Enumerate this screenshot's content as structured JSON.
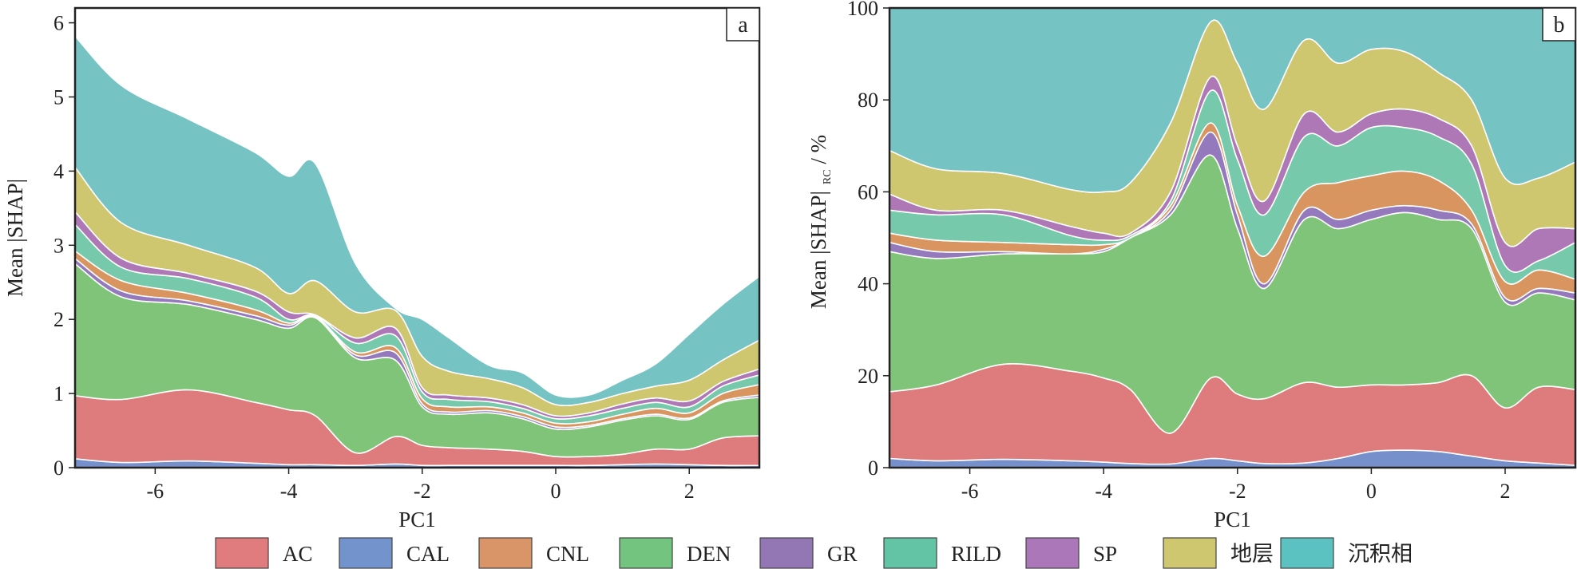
{
  "legend": [
    {
      "name": "AC",
      "color": "#e07b7e"
    },
    {
      "name": "CAL",
      "color": "#7393cc"
    },
    {
      "name": "CNL",
      "color": "#d99567"
    },
    {
      "name": "DEN",
      "color": "#73c47e"
    },
    {
      "name": "GR",
      "color": "#9376b4"
    },
    {
      "name": "RILD",
      "color": "#62c3a5"
    },
    {
      "name": "SP",
      "color": "#ab77b8"
    },
    {
      "name": "地层",
      "color": "#cfc670"
    },
    {
      "name": "沉积相",
      "color": "#5cc1c1"
    }
  ],
  "chart_data": [
    {
      "type": "area",
      "stacked": true,
      "panel_label": "a",
      "title": "",
      "xlabel": "PC1",
      "ylabel": "Mean |SHAP|",
      "xlim": [
        -7.2,
        3.05
      ],
      "ylim": [
        0,
        6.2
      ],
      "xticks": [
        -6,
        -4,
        -2,
        0,
        2
      ],
      "yticks": [
        0,
        1,
        2,
        3,
        4,
        5,
        6
      ],
      "stack_order": [
        "CAL",
        "AC",
        "DEN",
        "GR",
        "CNL",
        "RILD",
        "SP",
        "地层",
        "沉积相"
      ],
      "x": [
        -7.2,
        -6.5,
        -5.5,
        -4.5,
        -4.0,
        -3.6,
        -3.0,
        -2.4,
        -2.0,
        -1.6,
        -1.0,
        -0.5,
        0.0,
        0.5,
        1.0,
        1.5,
        2.0,
        2.5,
        3.05
      ],
      "series": [
        {
          "name": "CAL",
          "values": [
            0.12,
            0.07,
            0.09,
            0.06,
            0.04,
            0.04,
            0.03,
            0.05,
            0.03,
            0.03,
            0.03,
            0.03,
            0.03,
            0.03,
            0.04,
            0.05,
            0.04,
            0.03,
            0.03
          ]
        },
        {
          "name": "AC",
          "values": [
            0.85,
            0.85,
            0.96,
            0.82,
            0.74,
            0.66,
            0.17,
            0.37,
            0.27,
            0.24,
            0.22,
            0.19,
            0.12,
            0.12,
            0.14,
            0.2,
            0.21,
            0.37,
            0.4
          ]
        },
        {
          "name": "DEN",
          "values": [
            1.78,
            1.38,
            1.15,
            1.12,
            1.1,
            1.32,
            1.28,
            1.03,
            0.52,
            0.45,
            0.49,
            0.44,
            0.37,
            0.4,
            0.46,
            0.45,
            0.4,
            0.48,
            0.52
          ]
        },
        {
          "name": "GR",
          "values": [
            0.07,
            0.08,
            0.05,
            0.05,
            0.04,
            0.01,
            0.04,
            0.1,
            0.04,
            0.03,
            0.03,
            0.03,
            0.03,
            0.02,
            0.02,
            0.02,
            0.02,
            0.02,
            0.03
          ]
        },
        {
          "name": "CNL",
          "values": [
            0.1,
            0.14,
            0.1,
            0.08,
            0.03,
            0.01,
            0.04,
            0.07,
            0.07,
            0.07,
            0.05,
            0.05,
            0.05,
            0.05,
            0.06,
            0.08,
            0.07,
            0.1,
            0.14
          ]
        },
        {
          "name": "RILD",
          "values": [
            0.36,
            0.18,
            0.2,
            0.17,
            0.05,
            0.01,
            0.12,
            0.16,
            0.09,
            0.1,
            0.07,
            0.06,
            0.06,
            0.08,
            0.08,
            0.08,
            0.08,
            0.1,
            0.13
          ]
        },
        {
          "name": "SP",
          "values": [
            0.17,
            0.12,
            0.07,
            0.08,
            0.1,
            0.01,
            0.07,
            0.1,
            0.06,
            0.06,
            0.05,
            0.05,
            0.04,
            0.04,
            0.06,
            0.06,
            0.08,
            0.06,
            0.08
          ]
        },
        {
          "name": "地层",
          "values": [
            0.6,
            0.48,
            0.38,
            0.32,
            0.25,
            0.46,
            0.35,
            0.24,
            0.42,
            0.32,
            0.26,
            0.23,
            0.15,
            0.14,
            0.14,
            0.16,
            0.28,
            0.29,
            0.39
          ]
        },
        {
          "name": "沉积相",
          "values": [
            1.77,
            1.85,
            1.7,
            1.55,
            1.58,
            1.58,
            0.65,
            0.03,
            0.5,
            0.45,
            0.18,
            0.2,
            0.13,
            0.1,
            0.18,
            0.3,
            0.62,
            0.75,
            0.86
          ]
        }
      ]
    },
    {
      "type": "area",
      "stacked": true,
      "panel_label": "b",
      "title": "",
      "xlabel": "PC1",
      "ylabel": "Mean |SHAP|RC / %",
      "ylabel_main": "Mean |SHAP|",
      "ylabel_sub": "RC",
      "ylabel_tail": " / %",
      "xlim": [
        -7.2,
        3.05
      ],
      "ylim": [
        0,
        100
      ],
      "xticks": [
        -6,
        -4,
        -2,
        0,
        2
      ],
      "yticks": [
        0,
        20,
        40,
        60,
        80,
        100
      ],
      "stack_order": [
        "CAL",
        "AC",
        "DEN",
        "GR",
        "CNL",
        "RILD",
        "SP",
        "地层",
        "沉积相"
      ],
      "x": [
        -7.2,
        -6.5,
        -5.5,
        -4.5,
        -4.0,
        -3.6,
        -3.0,
        -2.4,
        -2.0,
        -1.6,
        -1.0,
        -0.5,
        0.0,
        0.5,
        1.0,
        1.5,
        2.0,
        2.5,
        3.05
      ],
      "series": [
        {
          "name": "CAL",
          "values": [
            2,
            1.5,
            1.8,
            1.5,
            1.2,
            0.9,
            0.8,
            2,
            1.5,
            0.9,
            1,
            2,
            3.5,
            3.8,
            3.5,
            2.5,
            1.5,
            1,
            0.5
          ]
        },
        {
          "name": "AC",
          "values": [
            14.5,
            16.5,
            20.7,
            19.5,
            18.3,
            16.1,
            6.7,
            17.5,
            14.5,
            14.1,
            17.5,
            15.5,
            14.5,
            14.2,
            15,
            17.5,
            11.5,
            16.5,
            16.5
          ]
        },
        {
          "name": "DEN",
          "values": [
            30.5,
            27.5,
            24,
            25.5,
            27.5,
            33,
            47.5,
            48.5,
            36,
            24,
            35.5,
            34.5,
            36,
            37.5,
            35.5,
            32,
            23,
            20.5,
            19.5
          ]
        },
        {
          "name": "GR",
          "values": [
            2,
            1.5,
            0.5,
            0,
            0.5,
            0,
            1,
            5,
            3,
            1,
            2,
            2,
            2,
            1.5,
            2,
            1,
            1,
            1,
            1.5
          ]
        },
        {
          "name": "CNL",
          "values": [
            2,
            2.5,
            2,
            2,
            1,
            0,
            1,
            2,
            2,
            6,
            4,
            8,
            7.5,
            7.5,
            6.5,
            3,
            3.5,
            4,
            3
          ]
        },
        {
          "name": "RILD",
          "values": [
            5,
            5.5,
            6,
            2,
            1,
            0.5,
            1,
            7,
            10,
            9,
            12,
            8,
            10.5,
            9.5,
            9.5,
            10,
            3.5,
            2,
            8
          ]
        },
        {
          "name": "SP",
          "values": [
            3.5,
            1,
            1,
            2,
            1.5,
            0.5,
            2,
            3,
            3,
            3,
            5,
            3,
            3,
            4,
            4,
            4,
            5,
            7,
            3
          ]
        },
        {
          "name": "地层",
          "values": [
            9.5,
            9,
            8,
            8,
            9,
            11,
            15,
            12,
            18,
            20,
            16,
            15,
            14,
            12.5,
            10,
            10,
            14,
            11,
            14.5
          ]
        },
        {
          "name": "沉积相",
          "values": [
            31,
            35,
            36,
            39.5,
            40,
            38,
            25,
            3,
            12,
            22,
            7,
            12,
            9,
            9.5,
            14,
            20,
            37,
            37,
            33.5
          ]
        }
      ]
    }
  ]
}
